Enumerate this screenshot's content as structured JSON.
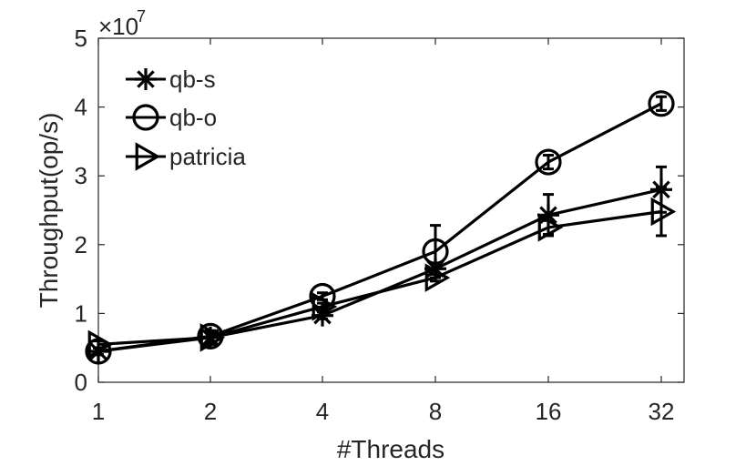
{
  "chart_data": {
    "type": "line",
    "xlabel": "#Threads",
    "ylabel": "Throughput(op/s)",
    "y_multiplier": "×10",
    "y_multiplier_exp": "7",
    "categories": [
      "1",
      "2",
      "4",
      "8",
      "16",
      "32"
    ],
    "y_ticks": [
      "0",
      "1",
      "2",
      "3",
      "4",
      "5"
    ],
    "ylim": [
      0,
      5
    ],
    "grid": false,
    "legend_position": "top-left",
    "series": [
      {
        "name": "qb-s",
        "marker": "asterisk",
        "values": [
          0.45,
          0.65,
          0.97,
          1.65,
          2.43,
          2.8
        ],
        "error": [
          0.05,
          0.1,
          0.05,
          0.08,
          0.3,
          0.33
        ]
      },
      {
        "name": "qb-o",
        "marker": "circle",
        "values": [
          0.45,
          0.67,
          1.25,
          1.9,
          3.2,
          4.05
        ],
        "error": [
          0.05,
          0.08,
          0.05,
          0.38,
          0.1,
          0.1
        ]
      },
      {
        "name": "patricia",
        "marker": "triangle-right",
        "values": [
          0.55,
          0.65,
          1.1,
          1.52,
          2.25,
          2.48
        ],
        "error": [
          0.05,
          0.07,
          0.05,
          0.05,
          0.1,
          0.35
        ]
      }
    ],
    "colors": {
      "lines": "#000000",
      "axis": "#262626"
    }
  }
}
